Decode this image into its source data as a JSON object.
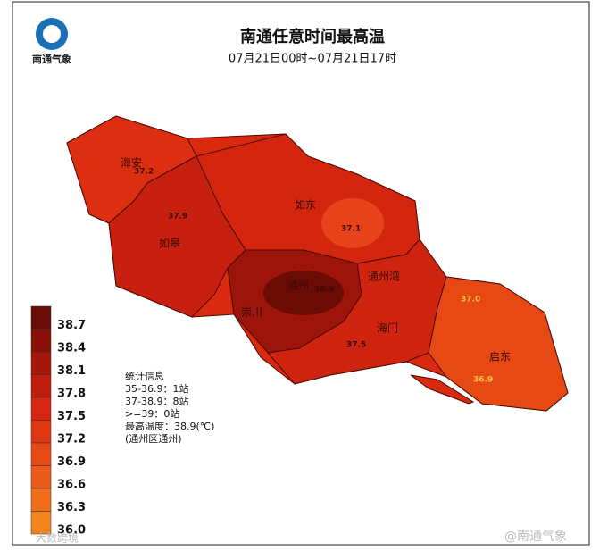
{
  "header": {
    "logo_text": "南通气象",
    "title": "南通任意时间最高温",
    "subtitle": "07月21日00时~07月21日17时"
  },
  "legend": [
    {
      "label": "38.7",
      "color": "#6b0b06"
    },
    {
      "label": "38.4",
      "color": "#8a1008"
    },
    {
      "label": "38.1",
      "color": "#a8170b"
    },
    {
      "label": "37.8",
      "color": "#c11d0d"
    },
    {
      "label": "37.5",
      "color": "#d6260f"
    },
    {
      "label": "37.2",
      "color": "#e03612"
    },
    {
      "label": "36.9",
      "color": "#e64914"
    },
    {
      "label": "36.6",
      "color": "#ec5b17"
    },
    {
      "label": "36.3",
      "color": "#f06e1a"
    },
    {
      "label": "36.0",
      "color": "#f5831e"
    }
  ],
  "regions": [
    "海安",
    "如皋",
    "如东",
    "通州",
    "崇川",
    "海门",
    "启东",
    "通州湾"
  ],
  "stations": [
    "37.2",
    "37.9",
    "37.1",
    "38.9",
    "37.5",
    "37.0",
    "36.9"
  ],
  "stats": [
    "统计信息",
    "35-36.9：1站",
    "37-38.9：8站",
    ">=39：0站",
    "最高温度：38.9(℃)",
    "(通州区通州)"
  ],
  "watermarks": [
    "@南通气象",
    "大数跨境"
  ]
}
